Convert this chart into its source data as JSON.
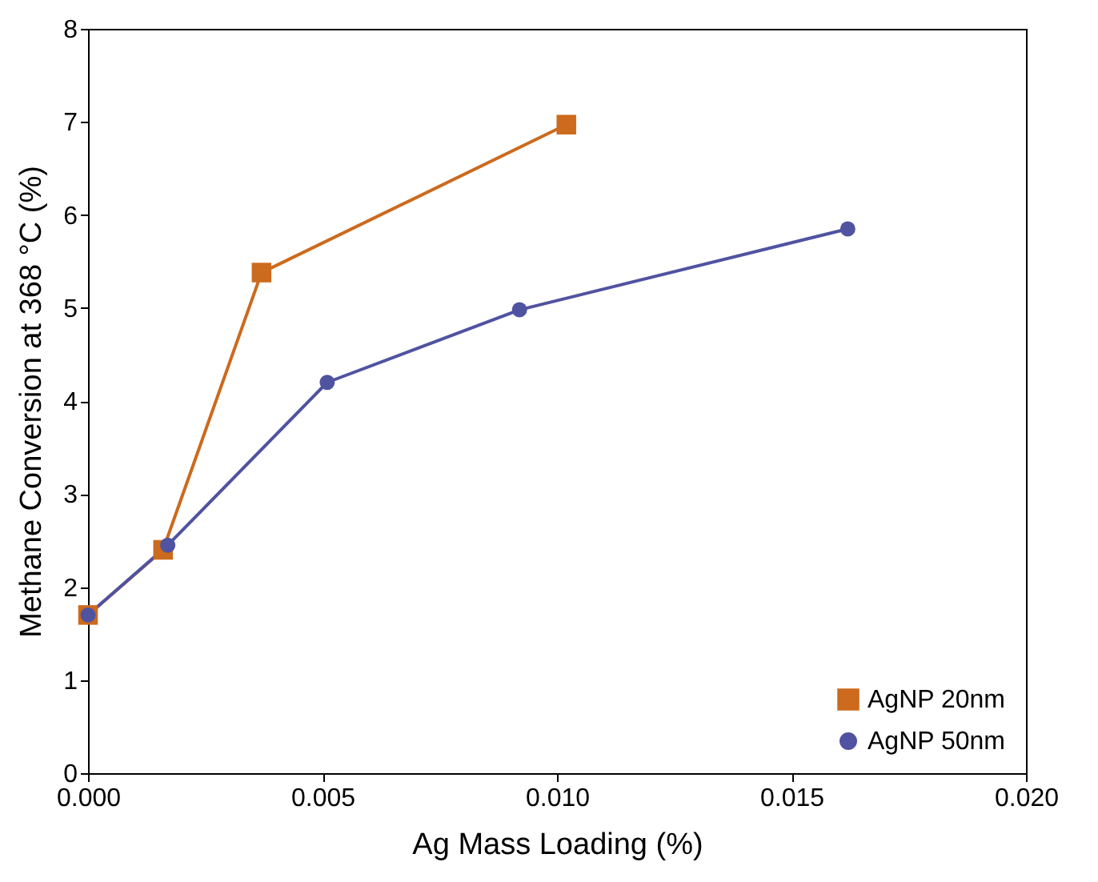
{
  "chart_data": {
    "type": "line",
    "xlabel": "Ag Mass Loading (%)",
    "ylabel": "Methane Conversion at 368 °C (%)",
    "xlim": [
      0,
      0.02
    ],
    "xticks": [
      {
        "value": 0,
        "label": "0.000"
      },
      {
        "value": 0.005,
        "label": "0.005"
      },
      {
        "value": 0.01,
        "label": "0.010"
      },
      {
        "value": 0.015,
        "label": "0.015"
      },
      {
        "value": 0.02,
        "label": "0.020"
      }
    ],
    "ylim": [
      0,
      8
    ],
    "yticks": [
      0,
      1,
      2,
      3,
      4,
      5,
      6,
      7,
      8
    ],
    "grid": false,
    "legend": "bottom right",
    "line_style": "solid",
    "series": [
      {
        "name": "AgNP 20nm",
        "color": "#cc6a1e",
        "marker": "square",
        "x": [
          0,
          0.0016,
          0.0037,
          0.0102
        ],
        "values": [
          1.7,
          2.4,
          5.38,
          6.97
        ]
      },
      {
        "name": "AgNP 50nm",
        "color": "#4f53a0",
        "marker": "circle",
        "x": [
          0,
          0.0017,
          0.0051,
          0.0092,
          0.0162
        ],
        "values": [
          1.7,
          2.45,
          4.2,
          4.98,
          5.85
        ]
      }
    ]
  }
}
